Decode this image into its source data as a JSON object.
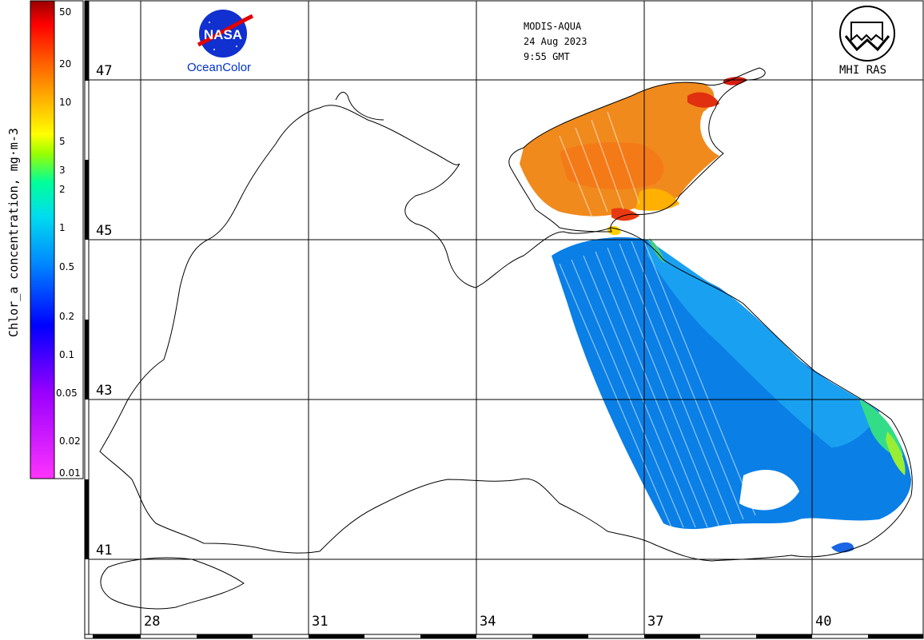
{
  "header": {
    "sensor": "MODIS-AQUA",
    "date": "24 Aug 2023",
    "time": "9:55 GMT",
    "logo_left_text": "OceanColor",
    "logo_left_emblem": "NASA",
    "logo_right_text": "MHI RAS"
  },
  "colorbar": {
    "title": "Chlor_a concentration, mg·m-3",
    "scale": "log",
    "ticks": [
      "50",
      "20",
      "10",
      "5",
      "3",
      "2",
      "1",
      "0.5",
      "0.2",
      "0.1",
      "0.05",
      "0.02",
      "0.01"
    ],
    "tick_values": [
      50,
      20,
      10,
      5,
      3,
      2,
      1,
      0.5,
      0.2,
      0.1,
      0.05,
      0.02,
      0.01
    ],
    "range": [
      0.01,
      60
    ],
    "colors": [
      "#ff33ff",
      "#9900ff",
      "#0000ff",
      "#0088ff",
      "#00ccff",
      "#00ffcc",
      "#99ff00",
      "#ffff00",
      "#ffaa00",
      "#ff5500",
      "#ff0000",
      "#990000"
    ]
  },
  "map": {
    "region": "Black Sea",
    "lat_labels": [
      "47",
      "45",
      "43",
      "41"
    ],
    "lon_labels": [
      "28",
      "31",
      "34",
      "37",
      "40"
    ],
    "grid": true,
    "land_color": "#ffffff",
    "coast_color": "#000000",
    "no_data_color": "#ffffff"
  }
}
